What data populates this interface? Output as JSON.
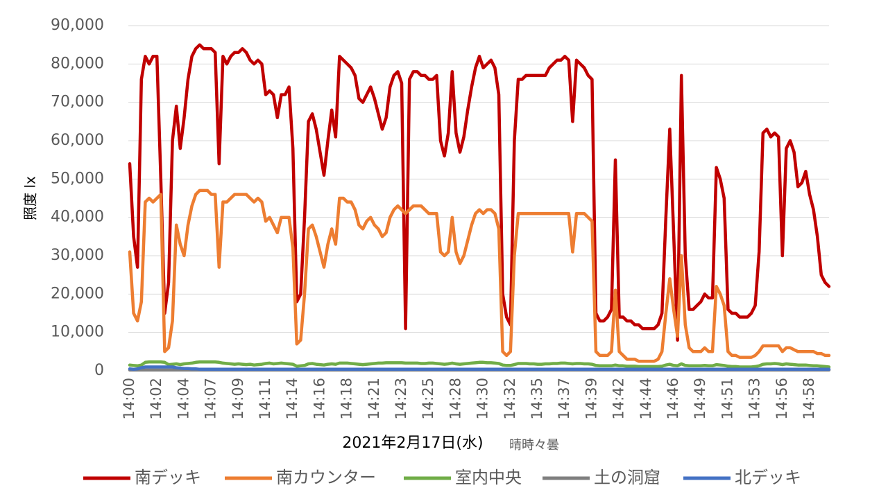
{
  "chart_data": {
    "type": "line",
    "y_label": "照度 lx",
    "x_label": "2021年2月17日(水)",
    "annotation": "晴時々曇",
    "grid": true,
    "legend": "bottom",
    "ylim": [
      0,
      90000
    ],
    "yticks": [
      0,
      {
        "value": 10000,
        "label": "10,000"
      },
      {
        "value": 20000,
        "label": "20,000"
      },
      {
        "value": 30000,
        "label": "30,000"
      },
      {
        "value": 40000,
        "label": "40,000"
      },
      {
        "value": 50000,
        "label": "50,000"
      },
      {
        "value": 60000,
        "label": "60,000"
      },
      {
        "value": 70000,
        "label": "70,000"
      },
      {
        "value": 80000,
        "label": "80,000"
      },
      {
        "value": 90000,
        "label": "90,000"
      }
    ],
    "categories": [
      "14:00",
      null,
      null,
      null,
      null,
      null,
      null,
      "14:02",
      null,
      null,
      null,
      null,
      null,
      null,
      "14:04",
      null,
      null,
      null,
      null,
      null,
      null,
      "14:07",
      null,
      null,
      null,
      null,
      null,
      null,
      "14:09",
      null,
      null,
      null,
      null,
      null,
      null,
      "14:11",
      null,
      null,
      null,
      null,
      null,
      null,
      "14:14",
      null,
      null,
      null,
      null,
      null,
      null,
      "14:16",
      null,
      null,
      null,
      null,
      null,
      null,
      "14:18",
      null,
      null,
      null,
      null,
      null,
      null,
      "14:21",
      null,
      null,
      null,
      null,
      null,
      null,
      "14:23",
      null,
      null,
      null,
      null,
      null,
      null,
      "14:25",
      null,
      null,
      null,
      null,
      null,
      null,
      "14:28",
      null,
      null,
      null,
      null,
      null,
      null,
      "14:30",
      null,
      null,
      null,
      null,
      null,
      null,
      "14:32",
      null,
      null,
      null,
      null,
      null,
      null,
      "14:35",
      null,
      null,
      null,
      null,
      null,
      null,
      "14:37",
      null,
      null,
      null,
      null,
      null,
      null,
      "14:39",
      null,
      null,
      null,
      null,
      null,
      null,
      "14:42",
      null,
      null,
      null,
      null,
      null,
      null,
      "14:44",
      null,
      null,
      null,
      null,
      null,
      null,
      "14:46",
      null,
      null,
      null,
      null,
      null,
      null,
      "14:49",
      null,
      null,
      null,
      null,
      null,
      null,
      "14:51",
      null,
      null,
      null,
      null,
      null,
      null,
      "14:53",
      null,
      null,
      null,
      null,
      null,
      null,
      "14:56",
      null,
      null,
      null,
      null,
      null,
      null,
      "14:58",
      null,
      null,
      null,
      null,
      null
    ],
    "series": [
      {
        "name": "南デッキ",
        "color": "#c00000",
        "values": [
          54000,
          35000,
          27000,
          76000,
          82000,
          80000,
          82000,
          82000,
          50000,
          15000,
          23000,
          60000,
          69000,
          58000,
          66000,
          76000,
          82000,
          84000,
          85000,
          84000,
          84000,
          84000,
          83000,
          54000,
          82000,
          80000,
          82000,
          83000,
          83000,
          84000,
          83000,
          81000,
          80000,
          81000,
          80000,
          72000,
          73000,
          72000,
          66000,
          72000,
          72000,
          74000,
          58000,
          18000,
          20000,
          40000,
          65000,
          67000,
          63000,
          57000,
          51000,
          60000,
          68000,
          61000,
          82000,
          81000,
          80000,
          79000,
          77000,
          71000,
          70000,
          72000,
          74000,
          71000,
          67000,
          63000,
          66000,
          74000,
          77000,
          78000,
          75000,
          11000,
          76000,
          78000,
          78000,
          77000,
          77000,
          76000,
          76000,
          77000,
          60000,
          56000,
          62000,
          78000,
          62000,
          57000,
          61000,
          68000,
          74000,
          79000,
          82000,
          79000,
          80000,
          81000,
          79000,
          72000,
          20000,
          14000,
          12000,
          60000,
          76000,
          76000,
          77000,
          77000,
          77000,
          77000,
          77000,
          77000,
          79000,
          80000,
          81000,
          81000,
          82000,
          81000,
          65000,
          81000,
          80000,
          79000,
          77000,
          76000,
          15000,
          13000,
          13000,
          14000,
          16000,
          55000,
          14000,
          14000,
          13000,
          13000,
          12000,
          12000,
          11000,
          11000,
          11000,
          11000,
          12000,
          15000,
          40000,
          63000,
          36000,
          8000,
          77000,
          30000,
          16000,
          16000,
          17000,
          18000,
          20000,
          19000,
          19000,
          53000,
          50000,
          45000,
          16000,
          15000,
          15000,
          14000,
          14000,
          14000,
          15000,
          17000,
          31000,
          62000,
          63000,
          61000,
          62000,
          61000,
          30000,
          58000,
          60000,
          57000,
          48000,
          49000,
          52000,
          46000,
          42000,
          35000,
          25000,
          23000,
          22000
        ]
      },
      {
        "name": "南カウンター",
        "color": "#ed7d31",
        "values": [
          31000,
          15000,
          13000,
          18000,
          44000,
          45000,
          44000,
          45000,
          46000,
          5000,
          6000,
          13000,
          38000,
          33000,
          30000,
          38000,
          43000,
          46000,
          47000,
          47000,
          47000,
          46000,
          46000,
          27000,
          44000,
          44000,
          45000,
          46000,
          46000,
          46000,
          46000,
          45000,
          44000,
          45000,
          44000,
          39000,
          40000,
          38000,
          36000,
          40000,
          40000,
          40000,
          32000,
          7000,
          8000,
          20000,
          37000,
          38000,
          35000,
          31000,
          27000,
          33000,
          37000,
          33000,
          45000,
          45000,
          44000,
          44000,
          42000,
          38000,
          37000,
          39000,
          40000,
          38000,
          37000,
          35000,
          36000,
          40000,
          42000,
          43000,
          42000,
          41000,
          42000,
          43000,
          43000,
          43000,
          42000,
          41000,
          41000,
          41000,
          31000,
          30000,
          31000,
          40000,
          31000,
          28000,
          30000,
          34000,
          38000,
          41000,
          42000,
          41000,
          42000,
          42000,
          41000,
          37000,
          5000,
          4000,
          5000,
          30000,
          41000,
          41000,
          41000,
          41000,
          41000,
          41000,
          41000,
          41000,
          41000,
          41000,
          41000,
          41000,
          41000,
          41000,
          31000,
          41000,
          41000,
          41000,
          40000,
          39000,
          5000,
          4000,
          4000,
          4000,
          5000,
          21000,
          5000,
          4000,
          3000,
          3000,
          3000,
          2500,
          2500,
          2500,
          2500,
          2500,
          3000,
          5000,
          15000,
          24000,
          16000,
          9000,
          30000,
          12000,
          6000,
          5000,
          5000,
          5000,
          6000,
          5000,
          5000,
          22000,
          20000,
          17000,
          5000,
          4000,
          4000,
          3500,
          3500,
          3500,
          3500,
          4000,
          5000,
          6500,
          6500,
          6500,
          6500,
          6500,
          5000,
          6000,
          6000,
          5500,
          5000,
          5000,
          5000,
          5000,
          5000,
          4500,
          4500,
          4000,
          4000
        ]
      },
      {
        "name": "室内中央",
        "color": "#70ad47",
        "values": [
          1500,
          1400,
          1300,
          1500,
          2200,
          2300,
          2300,
          2300,
          2300,
          2200,
          1600,
          1700,
          1800,
          1600,
          1800,
          1900,
          2000,
          2200,
          2300,
          2300,
          2300,
          2300,
          2300,
          2200,
          2000,
          1900,
          1800,
          1700,
          1800,
          1700,
          1600,
          1700,
          1500,
          1600,
          1700,
          1900,
          2000,
          1800,
          1900,
          2000,
          1900,
          1800,
          1700,
          1200,
          1300,
          1400,
          1800,
          1900,
          1700,
          1600,
          1500,
          1700,
          1800,
          1700,
          2000,
          2000,
          2000,
          1900,
          1800,
          1700,
          1600,
          1700,
          1800,
          1900,
          2000,
          2000,
          2100,
          2100,
          2100,
          2100,
          2100,
          2000,
          2000,
          2000,
          2000,
          1900,
          1900,
          2000,
          2000,
          1900,
          1800,
          1700,
          1800,
          2000,
          1800,
          1700,
          1800,
          1900,
          2000,
          2100,
          2200,
          2200,
          2100,
          2100,
          2000,
          1900,
          1500,
          1400,
          1400,
          1600,
          1900,
          1900,
          1900,
          1800,
          1800,
          1700,
          1700,
          1800,
          1800,
          1900,
          1900,
          2000,
          2000,
          1900,
          1800,
          1900,
          1900,
          1800,
          1800,
          1700,
          1400,
          1300,
          1300,
          1300,
          1300,
          1500,
          1300,
          1300,
          1200,
          1200,
          1200,
          1100,
          1100,
          1100,
          1100,
          1100,
          1100,
          1200,
          1500,
          1700,
          1400,
          1300,
          1800,
          1400,
          1300,
          1300,
          1300,
          1300,
          1400,
          1300,
          1300,
          1600,
          1500,
          1400,
          1200,
          1100,
          1100,
          1000,
          1000,
          1000,
          1000,
          1100,
          1300,
          1700,
          1800,
          1800,
          1900,
          1800,
          1600,
          1800,
          1700,
          1600,
          1500,
          1500,
          1500,
          1400,
          1300,
          1300,
          1200,
          1100,
          1000
        ]
      },
      {
        "name": "土の洞窟",
        "color": "#7f7f7f",
        "values": [
          200,
          200,
          200,
          200,
          200,
          200,
          200,
          200,
          200,
          200,
          200,
          200,
          200,
          200,
          200,
          200,
          200,
          200,
          200,
          200,
          200,
          200,
          200,
          200,
          200,
          200,
          200,
          200,
          200,
          200,
          200,
          200,
          200,
          200,
          200,
          200,
          200,
          200,
          200,
          200,
          200,
          200,
          200,
          200,
          200,
          200,
          200,
          200,
          200,
          200,
          200,
          200,
          200,
          200,
          200,
          200,
          200,
          200,
          200,
          200,
          200,
          200,
          200,
          200,
          200,
          200,
          200,
          200,
          200,
          200,
          200,
          200,
          200,
          200,
          200,
          200,
          200,
          200,
          200,
          200,
          200,
          200,
          200,
          200,
          200,
          200,
          200,
          200,
          200,
          200,
          200,
          200,
          200,
          200,
          200,
          200,
          200,
          200,
          200,
          200,
          200,
          200,
          200,
          200,
          200,
          200,
          200,
          200,
          200,
          200,
          200,
          200,
          200,
          200,
          200,
          200,
          200,
          200,
          200,
          200,
          200,
          200,
          200,
          200,
          200,
          200,
          200,
          200,
          200,
          200,
          200,
          200,
          200,
          200,
          200,
          200,
          200,
          200,
          200,
          200,
          200,
          200,
          200,
          200,
          200,
          200,
          200,
          200,
          200,
          200,
          200,
          200,
          200,
          200,
          200,
          200,
          200,
          200,
          200,
          200,
          200,
          200,
          200,
          200,
          200,
          200,
          200,
          200,
          200,
          200,
          200,
          200,
          200,
          200,
          200,
          200,
          200,
          200,
          200,
          200,
          200
        ]
      },
      {
        "name": "北デッキ",
        "color": "#4472c4",
        "values": [
          500,
          400,
          500,
          800,
          1000,
          1000,
          1000,
          1000,
          1000,
          1000,
          1000,
          1000,
          800,
          700,
          600,
          600,
          500,
          500,
          400,
          400,
          400,
          400,
          400,
          400,
          400,
          400,
          400,
          400,
          400,
          400,
          400,
          400,
          400,
          400,
          400,
          400,
          400,
          400,
          400,
          400,
          400,
          400,
          400,
          400,
          400,
          400,
          400,
          400,
          400,
          400,
          400,
          400,
          400,
          400,
          400,
          400,
          400,
          400,
          400,
          400,
          400,
          400,
          400,
          400,
          400,
          400,
          400,
          400,
          400,
          400,
          400,
          400,
          400,
          400,
          400,
          400,
          400,
          400,
          400,
          400,
          400,
          400,
          400,
          400,
          400,
          400,
          400,
          400,
          400,
          400,
          400,
          400,
          400,
          400,
          400,
          400,
          400,
          400,
          400,
          400,
          400,
          400,
          400,
          400,
          400,
          400,
          400,
          400,
          400,
          400,
          400,
          400,
          400,
          400,
          400,
          400,
          400,
          400,
          400,
          400,
          400,
          400,
          400,
          400,
          400,
          400,
          400,
          400,
          400,
          400,
          400,
          400,
          400,
          400,
          400,
          400,
          400,
          400,
          400,
          400,
          400,
          400,
          400,
          400,
          400,
          400,
          400,
          400,
          400,
          400,
          400,
          400,
          400,
          400,
          400,
          400,
          400,
          400,
          400,
          400,
          400,
          400,
          400,
          400,
          400,
          400,
          400,
          400,
          400,
          400,
          400,
          400,
          400,
          400,
          400,
          400,
          400,
          400,
          400,
          400,
          400
        ]
      }
    ]
  }
}
